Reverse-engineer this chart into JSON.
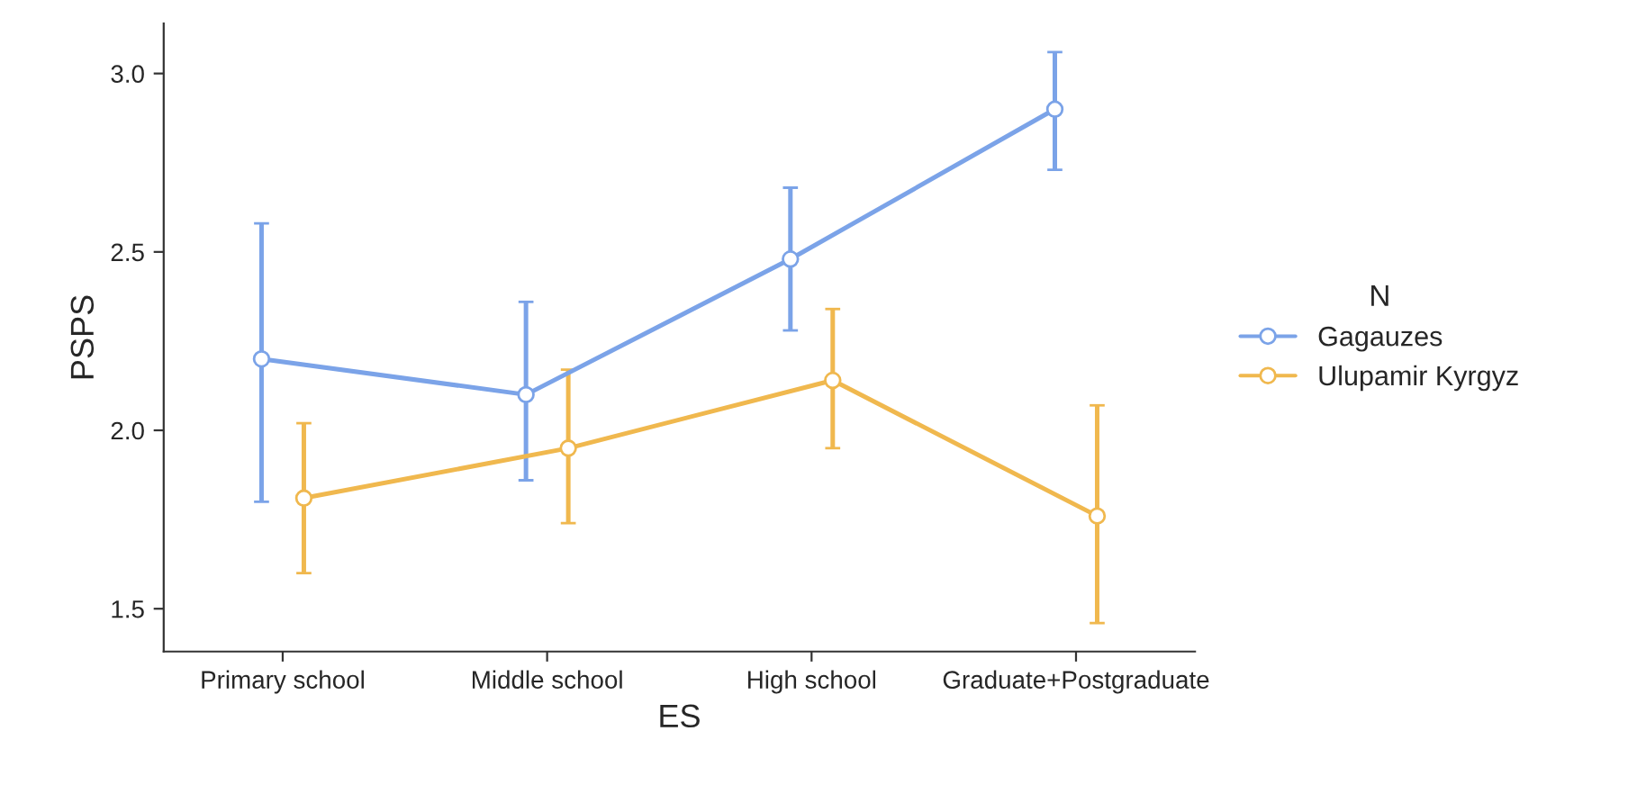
{
  "chart_data": {
    "type": "line",
    "xlabel": "ES",
    "ylabel": "PSPS",
    "legend_title": "N",
    "categories": [
      "Primary school",
      "Middle school",
      "High school",
      "Graduate+Postgraduate"
    ],
    "series": [
      {
        "name": "Gagauzes",
        "color": "#7ba3e8",
        "values": [
          2.2,
          2.1,
          2.48,
          2.9
        ],
        "errors": [
          [
            1.8,
            2.58
          ],
          [
            1.86,
            2.36
          ],
          [
            2.28,
            2.68
          ],
          [
            2.73,
            3.06
          ]
        ]
      },
      {
        "name": "Ulupamir Kyrgyz",
        "color": "#f0b84e",
        "values": [
          1.81,
          1.95,
          2.14,
          1.76
        ],
        "errors": [
          [
            1.6,
            2.02
          ],
          [
            1.74,
            2.17
          ],
          [
            1.95,
            2.34
          ],
          [
            1.46,
            2.07
          ]
        ]
      }
    ],
    "ylim": [
      1.38,
      3.14
    ],
    "yticks": [
      {
        "value": 1.5,
        "label": "1.5"
      },
      {
        "value": 2.0,
        "label": "2.0"
      },
      {
        "value": 2.5,
        "label": "2.5"
      },
      {
        "value": 3.0,
        "label": "3.0"
      }
    ],
    "grid": false,
    "legend": "right",
    "marker": "circle",
    "line_style": "solid"
  }
}
